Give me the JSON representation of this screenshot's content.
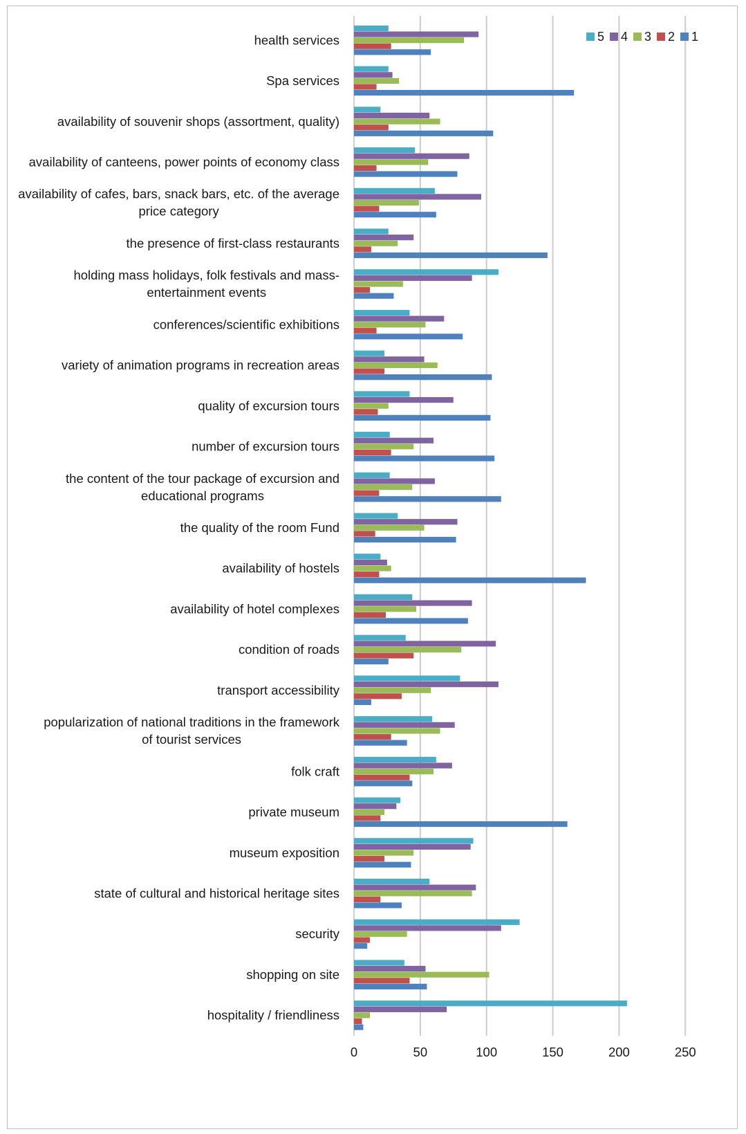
{
  "chart_data": {
    "type": "bar",
    "orientation": "horizontal",
    "title": "",
    "xlabel": "",
    "ylabel": "",
    "xlim": [
      0,
      250
    ],
    "xticks": [
      0,
      50,
      100,
      150,
      200,
      250
    ],
    "grid": true,
    "legend_position": "top-right",
    "legend_order": [
      "5",
      "4",
      "3",
      "2",
      "1"
    ],
    "categories": [
      "health services",
      "Spa services",
      "availability of souvenir shops (assortment, quality)",
      "availability of canteens, power points of economy class",
      "availability of cafes, bars, snack bars, etc. of the average price category",
      "the presence of first-class restaurants",
      "holding mass holidays, folk festivals and mass-entertainment events",
      "conferences/scientific exhibitions",
      "variety of animation programs in recreation areas",
      "quality of excursion tours",
      "number of excursion tours",
      "the content of the tour package of excursion and educational programs",
      "the quality of the room Fund",
      "availability of hostels",
      "availability of hotel complexes",
      "condition of roads",
      "transport accessibility",
      "popularization of national traditions in the framework of tourist services",
      "folk craft",
      "private museum",
      "museum exposition",
      "state of cultural and historical heritage sites",
      "security",
      "shopping on site",
      "hospitality / friendliness"
    ],
    "category_lines": [
      [
        "health services"
      ],
      [
        "Spa services"
      ],
      [
        "availability of souvenir shops (assortment, quality)"
      ],
      [
        "availability of canteens, power points of economy class"
      ],
      [
        "availability of cafes, bars, snack bars, etc. of the average",
        "price category"
      ],
      [
        "the presence of first-class restaurants"
      ],
      [
        "holding mass holidays, folk festivals and mass-",
        "entertainment events"
      ],
      [
        "conferences/scientific exhibitions"
      ],
      [
        "variety of animation programs in recreation areas"
      ],
      [
        "quality of excursion tours"
      ],
      [
        "number of excursion tours"
      ],
      [
        "the content of the tour package of excursion and",
        "educational programs"
      ],
      [
        "the quality of the room Fund"
      ],
      [
        "availability of hostels"
      ],
      [
        "availability of hotel complexes"
      ],
      [
        "condition of roads"
      ],
      [
        "transport accessibility"
      ],
      [
        "popularization of national traditions in the framework",
        "of tourist services"
      ],
      [
        "folk craft"
      ],
      [
        "private museum"
      ],
      [
        "museum exposition"
      ],
      [
        "state of cultural and historical heritage sites"
      ],
      [
        "security"
      ],
      [
        "shopping on site"
      ],
      [
        "hospitality / friendliness"
      ]
    ],
    "series": [
      {
        "name": "5",
        "color": "#4bacc6",
        "values": [
          26,
          26,
          20,
          46,
          61,
          26,
          109,
          42,
          23,
          42,
          27,
          27,
          33,
          20,
          44,
          39,
          80,
          59,
          62,
          35,
          90,
          57,
          125,
          38,
          206
        ]
      },
      {
        "name": "4",
        "color": "#8064a2",
        "values": [
          94,
          29,
          57,
          87,
          96,
          45,
          89,
          68,
          53,
          75,
          60,
          61,
          78,
          25,
          89,
          107,
          109,
          76,
          74,
          32,
          88,
          92,
          111,
          54,
          70
        ]
      },
      {
        "name": "3",
        "color": "#9bbb59",
        "values": [
          83,
          34,
          65,
          56,
          49,
          33,
          37,
          54,
          63,
          26,
          45,
          44,
          53,
          28,
          47,
          81,
          58,
          65,
          60,
          23,
          45,
          89,
          40,
          102,
          12
        ]
      },
      {
        "name": "2",
        "color": "#c0504d",
        "values": [
          28,
          17,
          26,
          17,
          19,
          13,
          12,
          17,
          23,
          18,
          28,
          19,
          16,
          19,
          24,
          45,
          36,
          28,
          42,
          20,
          23,
          20,
          12,
          42,
          6
        ]
      },
      {
        "name": "1",
        "color": "#4f81bd",
        "values": [
          58,
          166,
          105,
          78,
          62,
          146,
          30,
          82,
          104,
          103,
          106,
          111,
          77,
          175,
          86,
          26,
          13,
          40,
          44,
          161,
          43,
          36,
          10,
          55,
          7
        ]
      }
    ]
  }
}
